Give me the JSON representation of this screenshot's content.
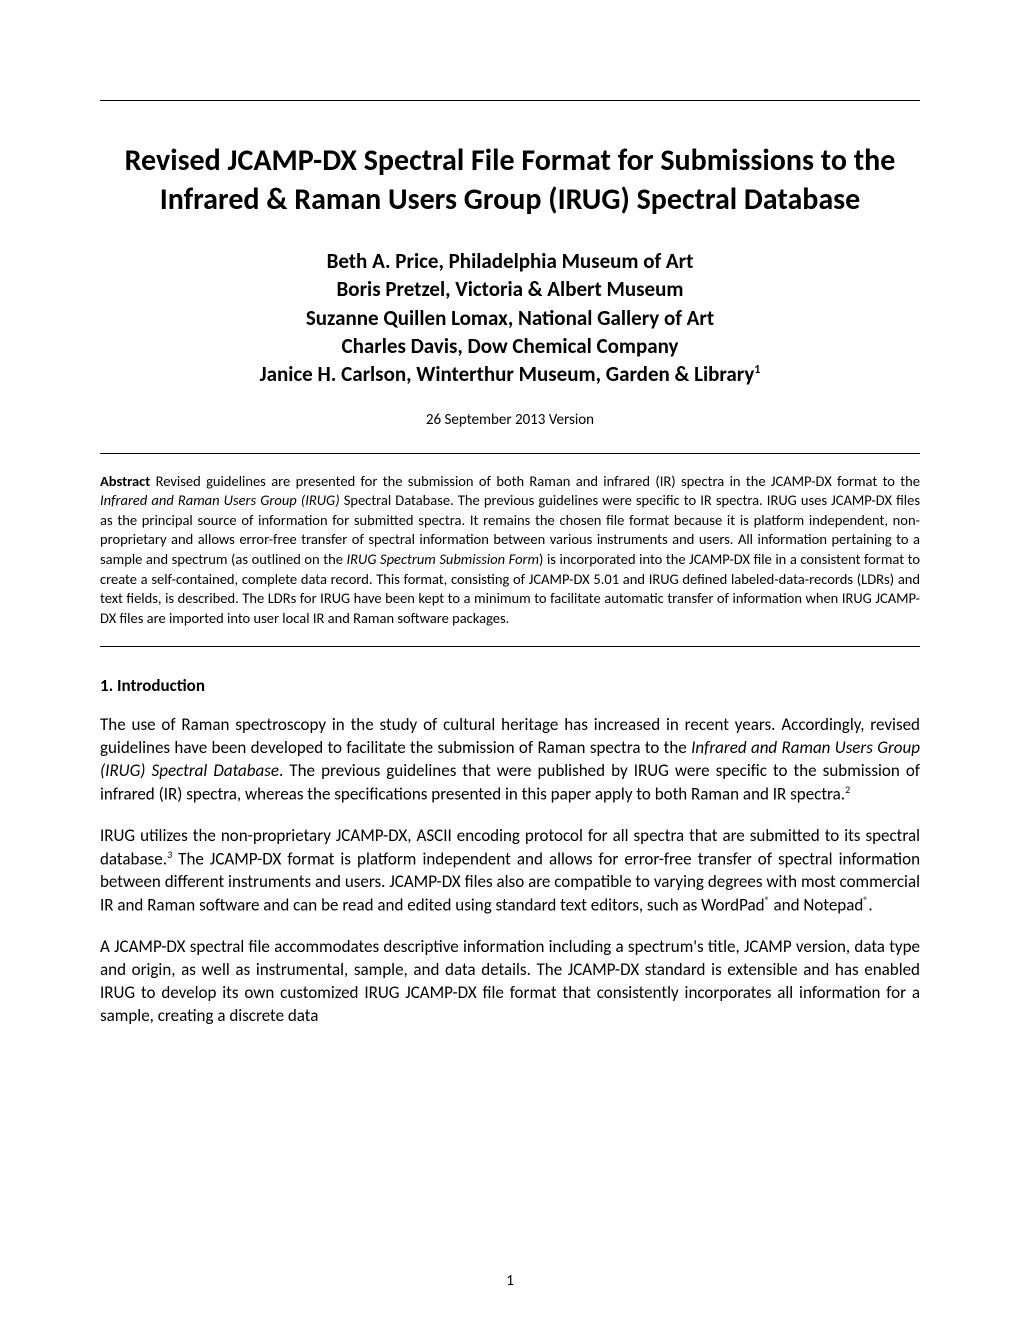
{
  "title_line1": "Revised JCAMP-DX Spectral File Format for Submissions to the",
  "title_line2": "Infrared & Raman Users Group (IRUG) Spectral Database",
  "authors": {
    "line1": "Beth A. Price, Philadelphia Museum of Art",
    "line2": "Boris Pretzel, Victoria & Albert Museum",
    "line3": "Suzanne Quillen Lomax, National Gallery of Art",
    "line4": "Charles Davis, Dow Chemical Company",
    "line5_pre": "Janice H. Carlson, Winterthur Museum, Garden & Library",
    "line5_sup": "1"
  },
  "date": "26 September 2013 Version",
  "abstract": {
    "label": "Abstract",
    "text_a": " Revised guidelines are presented for the submission of both Raman and infrared (IR) spectra in the JCAMP-DX format to the ",
    "italic_a": "Infrared and Raman Users Group (IRUG)",
    "text_b": " Spectral Database. The previous guidelines were specific to IR spectra. IRUG uses JCAMP-DX files as the principal source of information for submitted spectra. It remains the chosen file format because it is platform independent, non-proprietary and allows error-free transfer of spectral information between various instruments and users. All information pertaining to a sample and spectrum (as outlined on the ",
    "italic_b": "IRUG Spectrum Submission Form",
    "text_c": ") is incorporated into the JCAMP-DX file in a consistent format to create a self-contained, complete data record. This format, consisting of JCAMP-DX 5.01 and IRUG defined labeled-data-records (LDRs) and text fields, is described. The LDRs for IRUG have been kept to a minimum to facilitate automatic transfer of information when IRUG JCAMP-DX files are imported into user local IR and Raman software packages."
  },
  "section1_heading": "1. Introduction",
  "para1": {
    "a": "The use of Raman spectroscopy in the study of cultural heritage has increased in recent years. Accordingly, revised guidelines have been developed to facilitate the submission of Raman spectra to the ",
    "italic": "Infrared and Raman Users Group (IRUG) Spectral Database",
    "b": ". The previous guidelines that were published by IRUG were specific to the submission of infrared (IR) spectra, whereas the specifications presented in this paper apply to both Raman and IR spectra.",
    "sup": "2"
  },
  "para2": {
    "a": "IRUG utilizes the non-proprietary JCAMP-DX, ASCII encoding protocol for all spectra that are submitted to its spectral database.",
    "sup_i": "3",
    "b": " The JCAMP-DX format is platform independent and allows for error-free transfer of spectral information between different instruments and users. JCAMP-DX files also are compatible to varying degrees with most commercial IR and Raman software and can be read and edited using standard text editors, such as WordPad",
    "reg1": "®",
    "c": " and Notepad",
    "reg2": "®",
    "d": "."
  },
  "para3": {
    "a": "A JCAMP-DX spectral file accommodates descriptive information including a spectrum's title, JCAMP version, data type and origin, as well as instrumental, sample, and data details. The JCAMP-DX standard is extensible and has enabled IRUG to develop its own customized IRUG JCAMP-DX file format that consistently incorporates all information for a sample, creating a discrete data"
  },
  "page_number": "1"
}
